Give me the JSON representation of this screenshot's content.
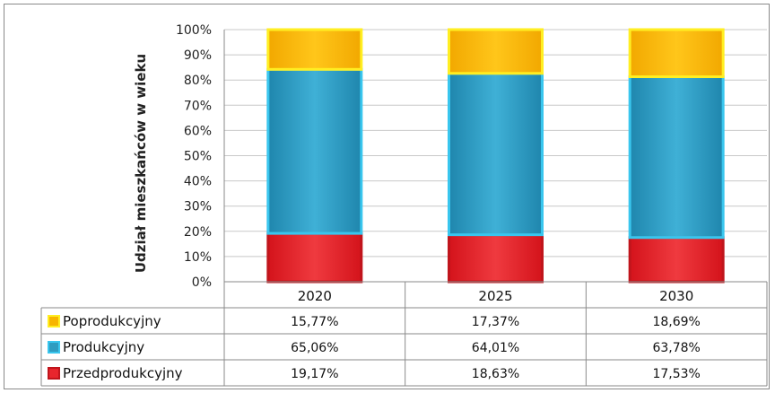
{
  "chart_data": {
    "type": "bar",
    "stacked": true,
    "ylabel": "Udział mieszkańców w wieku",
    "ylim": [
      0,
      100
    ],
    "yticks": [
      "0%",
      "10%",
      "20%",
      "30%",
      "40%",
      "50%",
      "60%",
      "70%",
      "80%",
      "90%",
      "100%"
    ],
    "categories": [
      "2020",
      "2025",
      "2030"
    ],
    "grid": true,
    "legend": "data-table",
    "series": [
      {
        "name": "Przedprodukcyjny",
        "values": [
          19.17,
          18.63,
          17.53
        ],
        "labels": [
          "19,17%",
          "18,63%",
          "17,53%"
        ],
        "color": "#e8262d",
        "stroke": "#c0151c"
      },
      {
        "name": "Produkcyjny",
        "values": [
          65.06,
          64.01,
          63.78
        ],
        "labels": [
          "65,06%",
          "64,01%",
          "63,78%"
        ],
        "color": "#2f9cc0",
        "stroke": "#39c6ee"
      },
      {
        "name": "Poprodukcyjny",
        "values": [
          15.77,
          17.37,
          18.69
        ],
        "labels": [
          "15,77%",
          "17,37%",
          "18,69%"
        ],
        "color": "#f7b500",
        "stroke": "#ffee22"
      }
    ],
    "table_order": [
      2,
      1,
      0
    ]
  }
}
